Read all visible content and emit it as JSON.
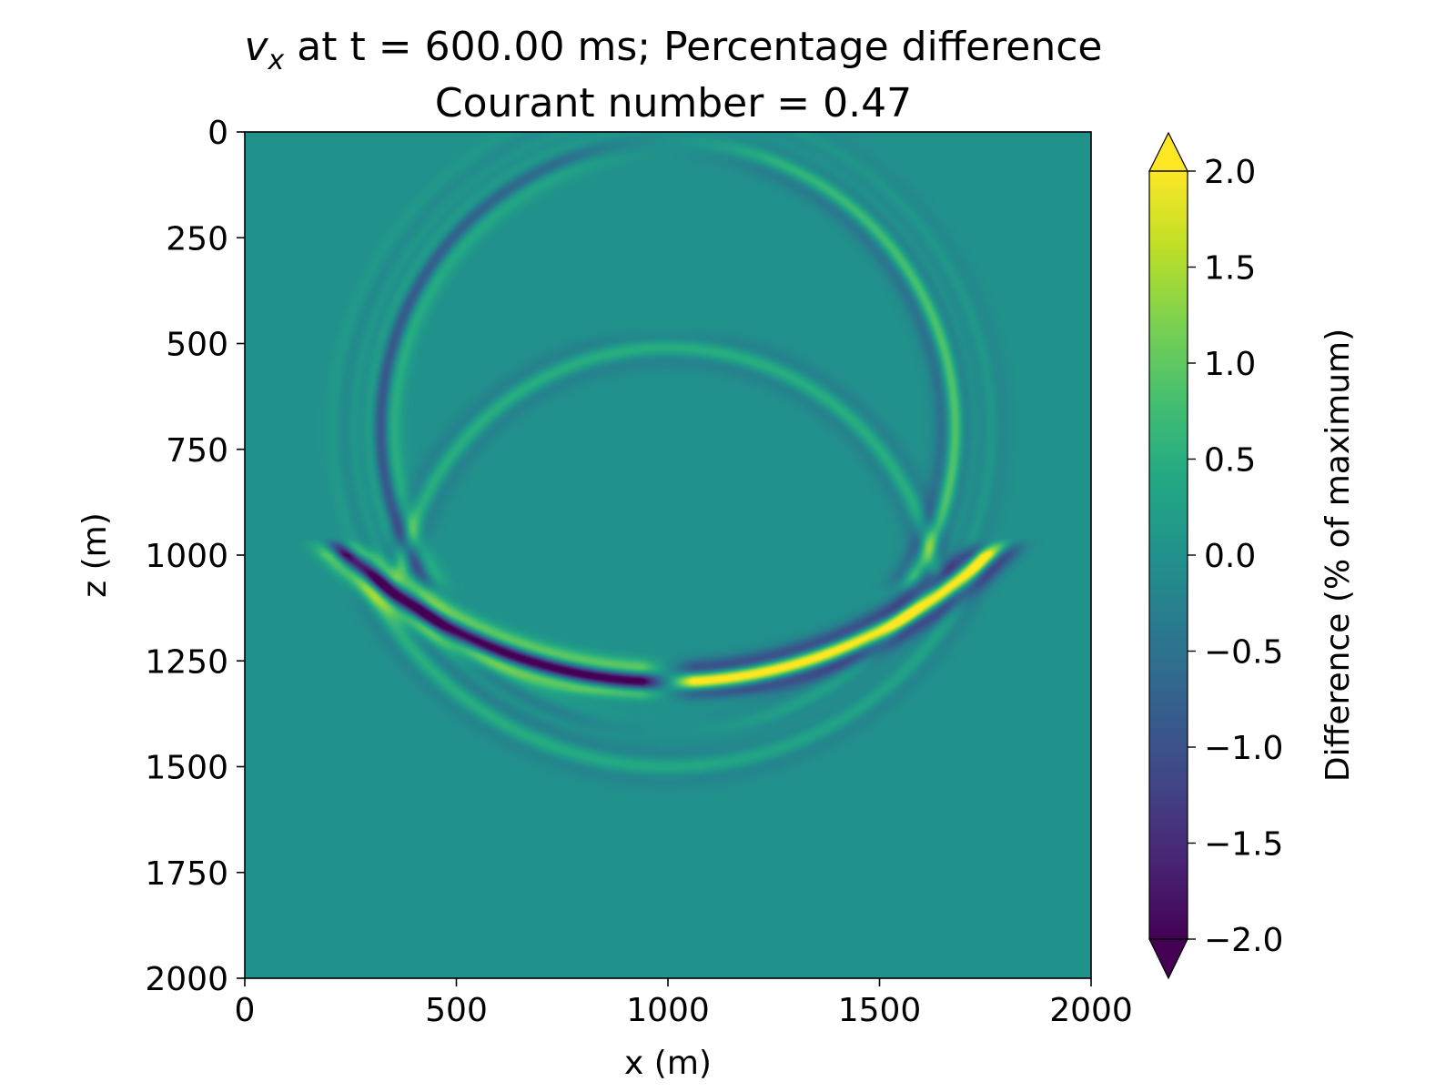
{
  "chart_data": {
    "type": "heatmap",
    "title": {
      "symbol": "v",
      "subscript": "x",
      "line1_rest": " at t = 600.00 ms; Percentage difference",
      "line2": "Courant number = 0.47"
    },
    "xlabel": "x (m)",
    "ylabel": "z (m)",
    "xlim": [
      0,
      2000
    ],
    "ylim": [
      2000,
      0
    ],
    "y_inverted": true,
    "x_ticks": [
      0,
      500,
      1000,
      1500,
      2000
    ],
    "y_ticks": [
      0,
      250,
      500,
      750,
      1000,
      1250,
      1500,
      1750,
      2000
    ],
    "x_tick_labels": [
      "0",
      "500",
      "1000",
      "1500",
      "2000"
    ],
    "y_tick_labels": [
      "0",
      "250",
      "500",
      "750",
      "1000",
      "1250",
      "1500",
      "1750",
      "2000"
    ],
    "colorbar": {
      "label": "Difference (% of maximum)",
      "colormap": "viridis",
      "range": [
        -2.0,
        2.0
      ],
      "extend": "both",
      "ticks": [
        2.0,
        1.5,
        1.0,
        0.5,
        0.0,
        -0.5,
        -1.0,
        -1.5,
        -2.0
      ],
      "tick_labels": [
        "2.0",
        "1.5",
        "1.0",
        "0.5",
        "0.0",
        "−0.5",
        "−1.0",
        "−1.5",
        "−2.0"
      ]
    },
    "background_value": 0.0,
    "features": [
      {
        "kind": "wavefront-ring",
        "center_x": 1000,
        "center_z": 700,
        "radius": 680,
        "amplitude": 1.1,
        "polarity": "antisymmetric-x",
        "z_range": [
          0,
          1050
        ]
      },
      {
        "kind": "wavefront-ring",
        "center_x": 1000,
        "center_z": 700,
        "radius": 720,
        "amplitude": 0.5,
        "polarity": "antisymmetric-x",
        "z_range": [
          0,
          1700
        ]
      },
      {
        "kind": "wavefront-ring",
        "center_x": 1000,
        "center_z": 700,
        "radius": 760,
        "amplitude": 0.3,
        "polarity": "antisymmetric-x",
        "z_range": [
          0,
          1700
        ]
      },
      {
        "kind": "inner-arc",
        "center_x": 1000,
        "center_z": 1150,
        "radius": 640,
        "amplitude": 0.5,
        "z_range": [
          500,
          1030
        ]
      },
      {
        "kind": "reflected-arc",
        "center_x": 1000,
        "center_z": 200,
        "radius": 1100,
        "amplitude": 2.2,
        "z_range": [
          1000,
          1320
        ]
      },
      {
        "kind": "lower-ring",
        "center_x": 1000,
        "center_z": 700,
        "radius": 800,
        "amplitude": 0.4,
        "z_range": [
          1000,
          1700
        ]
      }
    ]
  }
}
